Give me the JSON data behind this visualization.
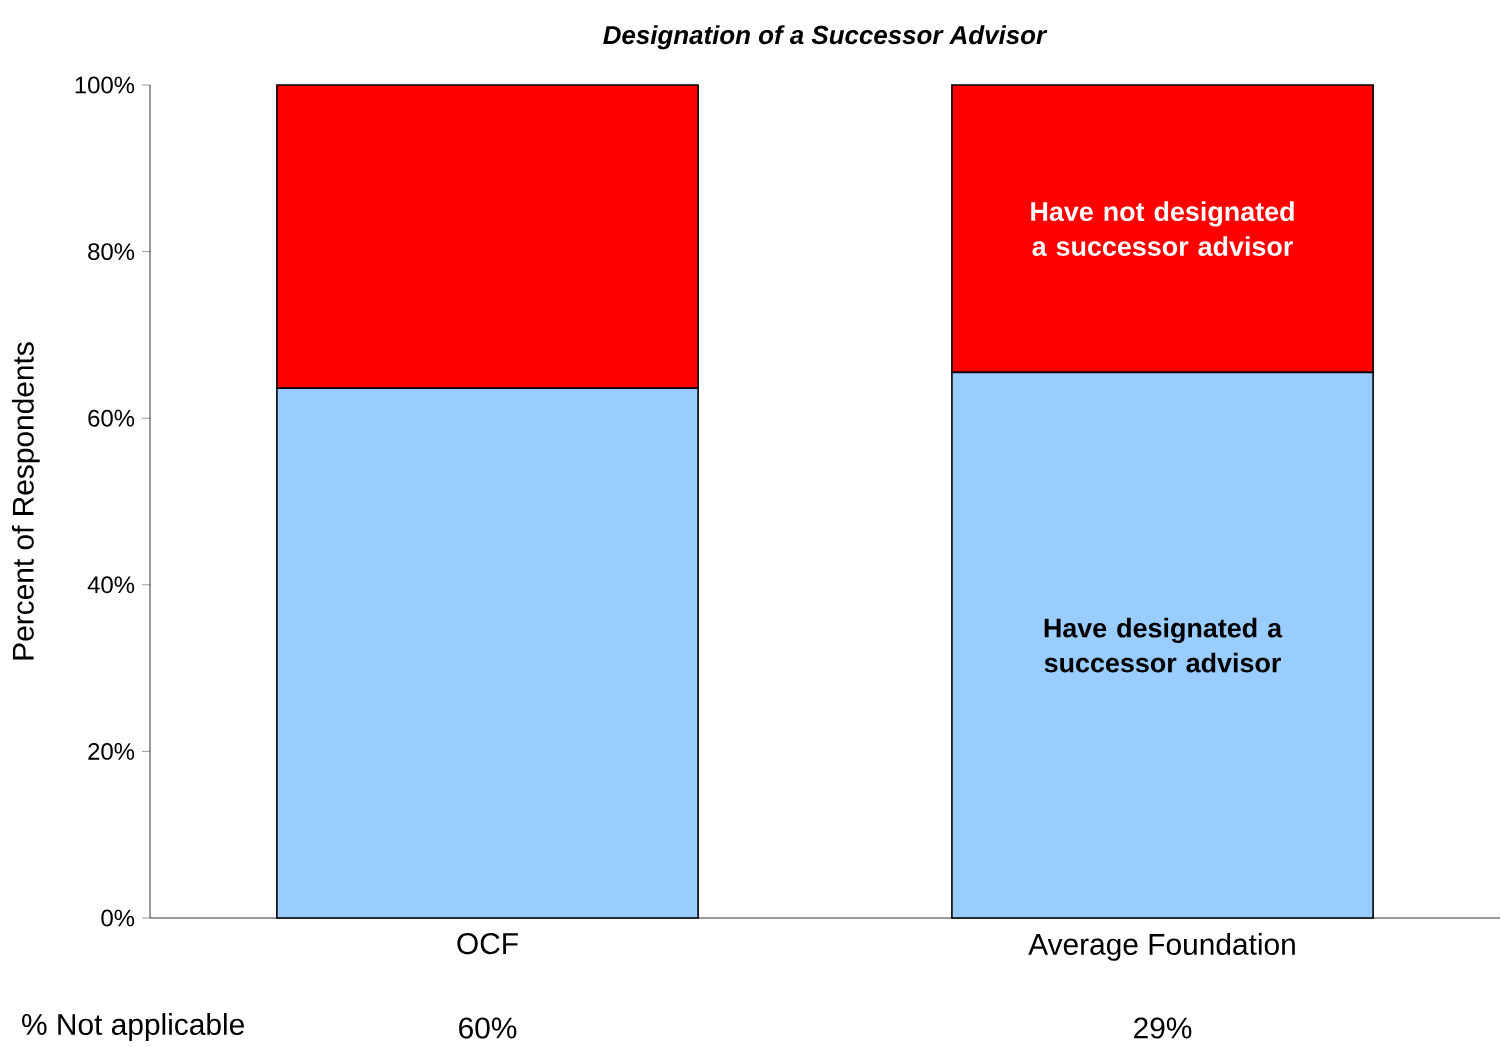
{
  "chart_data": {
    "type": "bar",
    "title": "*Designation of a Successor Advisor*",
    "ylabel": "Percent of Respondents",
    "categories": [
      "OCF",
      "Average Foundation"
    ],
    "series": [
      {
        "name": "Have designated a successor advisor",
        "color": "#99ccff",
        "values": [
          63.6,
          65.5
        ]
      },
      {
        "name": "Have not designated a successor advisor",
        "color": "#ff0000",
        "values": [
          36.4,
          34.5
        ]
      }
    ],
    "stacked": true,
    "ylim": [
      0,
      100
    ],
    "yticks": [
      {
        "value": 0,
        "label": "0%"
      },
      {
        "value": 20,
        "label": "20%"
      },
      {
        "value": 40,
        "label": "40%"
      },
      {
        "value": 60,
        "label": "60%"
      },
      {
        "value": 80,
        "label": "80%"
      },
      {
        "value": 100,
        "label": "100%"
      }
    ],
    "annotations": [
      "% Not applicable",
      "60%",
      "29%"
    ],
    "legend": false,
    "grid": false
  }
}
